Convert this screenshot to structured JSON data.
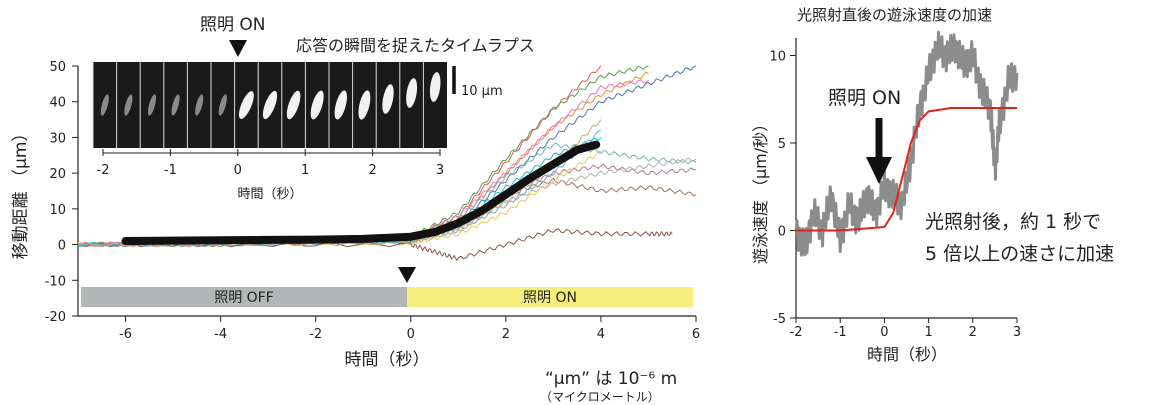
{
  "left_chart": {
    "xlabel": "時間（秒）",
    "ylabel": "移動距離 （μm）",
    "annotation_top": "照明 ON",
    "annotation_timelapse": "応答の瞬間を捉えたタイムラプス",
    "off_bar_label": "照明 OFF",
    "on_bar_label": "照明 ON",
    "scale_bar": "10 μm",
    "inset_xlabel": "時間（秒）",
    "inset_ticks": [
      "-2",
      "-1",
      "0",
      "1",
      "2",
      "3"
    ],
    "unit_note_line1": "“μm” は 10⁻⁶ m",
    "unit_note_line2": "（マイクロメートル）"
  },
  "right_chart": {
    "title": "光照射直後の遊泳速度の加速",
    "xlabel": "時間（秒）",
    "ylabel": "遊泳速度 （μm/秒）",
    "arrow_label": "照明 ON",
    "note_line1": "光照射後，約 1 秒で",
    "note_line2": "5 倍以上の速さに加速"
  },
  "colors": {
    "mean": "#111111",
    "off_bar": "#b3b6b7",
    "on_bar": "#f5ee7c",
    "speed_trace": "#8c8c8c",
    "fit": "#e2231a",
    "individual": [
      "#e15759",
      "#59a14f",
      "#4e79a7",
      "#f28e2b",
      "#76b7b2",
      "#b07aa1",
      "#9c755f",
      "#bab0ac",
      "#edc948",
      "#6baed6",
      "#8c564b",
      "#17becf",
      "#c7a86d",
      "#e377c2"
    ]
  },
  "chart_data": [
    {
      "type": "line",
      "xlabel": "時間（秒）",
      "ylabel": "移動距離 （μm）",
      "xlim": [
        -7,
        6
      ],
      "ylim": [
        -20,
        50
      ],
      "xticks": [
        -6,
        -4,
        -2,
        0,
        2,
        4,
        6
      ],
      "yticks": [
        -20,
        -10,
        0,
        10,
        20,
        30,
        40,
        50
      ],
      "mean_series": {
        "x": [
          -6,
          -5,
          -4,
          -3,
          -2,
          -1,
          0,
          0.5,
          1,
          1.5,
          2,
          2.5,
          3,
          3.5,
          3.9
        ],
        "y": [
          1,
          1.1,
          1.2,
          1.3,
          1.4,
          1.6,
          2.2,
          3.5,
          6,
          9.5,
          14,
          18.5,
          22.5,
          26.5,
          28
        ]
      },
      "individual_series": [
        {
          "x": [
            -7,
            -4,
            0,
            1,
            2,
            3,
            4
          ],
          "y": [
            0,
            0.5,
            1.5,
            8,
            23,
            38,
            50
          ]
        },
        {
          "x": [
            -7,
            -4,
            0,
            1,
            2,
            3,
            4,
            5
          ],
          "y": [
            0,
            0,
            2,
            9,
            24,
            38,
            47,
            50
          ]
        },
        {
          "x": [
            -7,
            -4,
            0,
            1,
            2,
            3,
            4,
            5,
            6
          ],
          "y": [
            0,
            0.5,
            1,
            6,
            18,
            30,
            40,
            45,
            50
          ]
        },
        {
          "x": [
            -7,
            -4,
            0,
            1,
            2,
            3,
            4,
            5
          ],
          "y": [
            0,
            1,
            2,
            7,
            20,
            33,
            42,
            48
          ]
        },
        {
          "x": [
            -7,
            -4,
            0,
            1,
            2,
            3,
            4,
            5,
            6
          ],
          "y": [
            0,
            0,
            1.5,
            7,
            19,
            28,
            26,
            24,
            23
          ]
        },
        {
          "x": [
            -7,
            -4,
            0,
            1,
            2,
            3,
            4,
            5,
            6
          ],
          "y": [
            0,
            0.5,
            1,
            5,
            14,
            20,
            22,
            20,
            21
          ]
        },
        {
          "x": [
            -7,
            -4,
            0,
            1,
            2,
            3,
            4,
            5,
            6
          ],
          "y": [
            0,
            0,
            1.5,
            6,
            14,
            18,
            15,
            16,
            14
          ]
        },
        {
          "x": [
            -7,
            -4,
            0,
            1,
            2,
            3,
            4,
            5,
            6
          ],
          "y": [
            0,
            1,
            1,
            5,
            12,
            17,
            20,
            22,
            24
          ]
        },
        {
          "x": [
            -7,
            -4,
            0,
            1,
            2,
            3,
            4
          ],
          "y": [
            0,
            0.5,
            0.5,
            3,
            9,
            18,
            26
          ]
        },
        {
          "x": [
            -7,
            -4,
            0,
            1,
            2,
            3,
            4
          ],
          "y": [
            0,
            0,
            1,
            4,
            11,
            20,
            32
          ]
        },
        {
          "x": [
            -7,
            -4,
            0,
            0.5,
            1,
            2,
            3,
            4,
            5,
            5.5
          ],
          "y": [
            0,
            0,
            0,
            -2,
            -4,
            0,
            4,
            3,
            3,
            3
          ]
        },
        {
          "x": [
            -7,
            -4,
            0,
            1,
            2,
            3,
            4
          ],
          "y": [
            0,
            0.5,
            1,
            6,
            16,
            25,
            30
          ]
        },
        {
          "x": [
            -7,
            -4,
            0,
            1,
            2,
            3,
            4
          ],
          "y": [
            0,
            0,
            0.5,
            4,
            12,
            22,
            35
          ]
        },
        {
          "x": [
            -7,
            -4,
            0,
            1,
            2,
            3,
            4,
            5
          ],
          "y": [
            0,
            0.5,
            2,
            8,
            20,
            33,
            44,
            46
          ]
        }
      ]
    },
    {
      "type": "line",
      "title": "光照射直後の遊泳速度の加速",
      "xlabel": "時間（秒）",
      "ylabel": "遊泳速度 （μm/秒）",
      "xlim": [
        -2,
        3
      ],
      "ylim": [
        -5,
        11
      ],
      "xticks": [
        -2,
        -1,
        0,
        1,
        2,
        3
      ],
      "yticks": [
        -5,
        0,
        5,
        10
      ],
      "series": [
        {
          "x": [
            -2,
            -1.8,
            -1.6,
            -1.4,
            -1.2,
            -1.0,
            -0.8,
            -0.6,
            -0.4,
            -0.2,
            0,
            0.2,
            0.4,
            0.6,
            0.8,
            1.0,
            1.2,
            1.4,
            1.6,
            1.8,
            2.0,
            2.2,
            2.4,
            2.5,
            2.6,
            2.8,
            3.0
          ],
          "y": [
            0,
            -1,
            1,
            0,
            2,
            -0.5,
            1.5,
            0.5,
            2,
            1,
            2.5,
            2,
            1.5,
            4,
            7,
            9,
            10.5,
            10,
            10.5,
            9.5,
            10,
            8,
            7,
            3.5,
            6,
            8.5,
            9
          ]
        },
        {
          "x": [
            -2,
            -1,
            0,
            0.2,
            0.4,
            0.6,
            0.8,
            1.0,
            1.5,
            2,
            3
          ],
          "y": [
            0,
            0,
            0.2,
            1.0,
            3.0,
            5.0,
            6.3,
            6.8,
            7,
            7,
            7
          ]
        }
      ]
    }
  ]
}
